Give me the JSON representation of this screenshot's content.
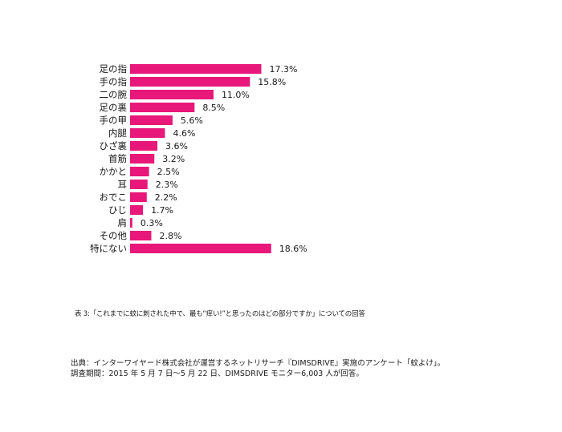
{
  "chart_data": {
    "type": "bar",
    "orientation": "horizontal",
    "categories": [
      "足の指",
      "手の指",
      "二の腕",
      "足の裏",
      "手の甲",
      "内腿",
      "ひざ裏",
      "首筋",
      "かかと",
      "耳",
      "おでこ",
      "ひじ",
      "肩",
      "その他",
      "特にない"
    ],
    "values": [
      17.3,
      15.8,
      11.0,
      8.5,
      5.6,
      4.6,
      3.6,
      3.2,
      2.5,
      2.3,
      2.2,
      1.7,
      0.3,
      2.8,
      18.6
    ],
    "value_labels": [
      "17.3%",
      "15.8%",
      "11.0%",
      "8.5%",
      "5.6%",
      "4.6%",
      "3.6%",
      "3.2%",
      "2.5%",
      "2.3%",
      "2.2%",
      "1.7%",
      "0.3%",
      "2.8%",
      "18.6%"
    ],
    "unit": "%",
    "bar_color": "#e8177a",
    "grid": false,
    "xlim": [
      0,
      20
    ]
  },
  "caption": "表 3:「これまでに蚊に刺された中で、最も“痒い!”と思ったのはどの部分ですか」についての回答",
  "source": {
    "line1": "出典：インターワイヤード株式会社が運営するネットリサーチ『DIMSDRIVE』実施のアンケート「蚊よけ」。",
    "line2": "調査期間：2015 年 5 月 7 日～5 月 22 日、DIMSDRIVE モニター6,003 人が回答。"
  }
}
